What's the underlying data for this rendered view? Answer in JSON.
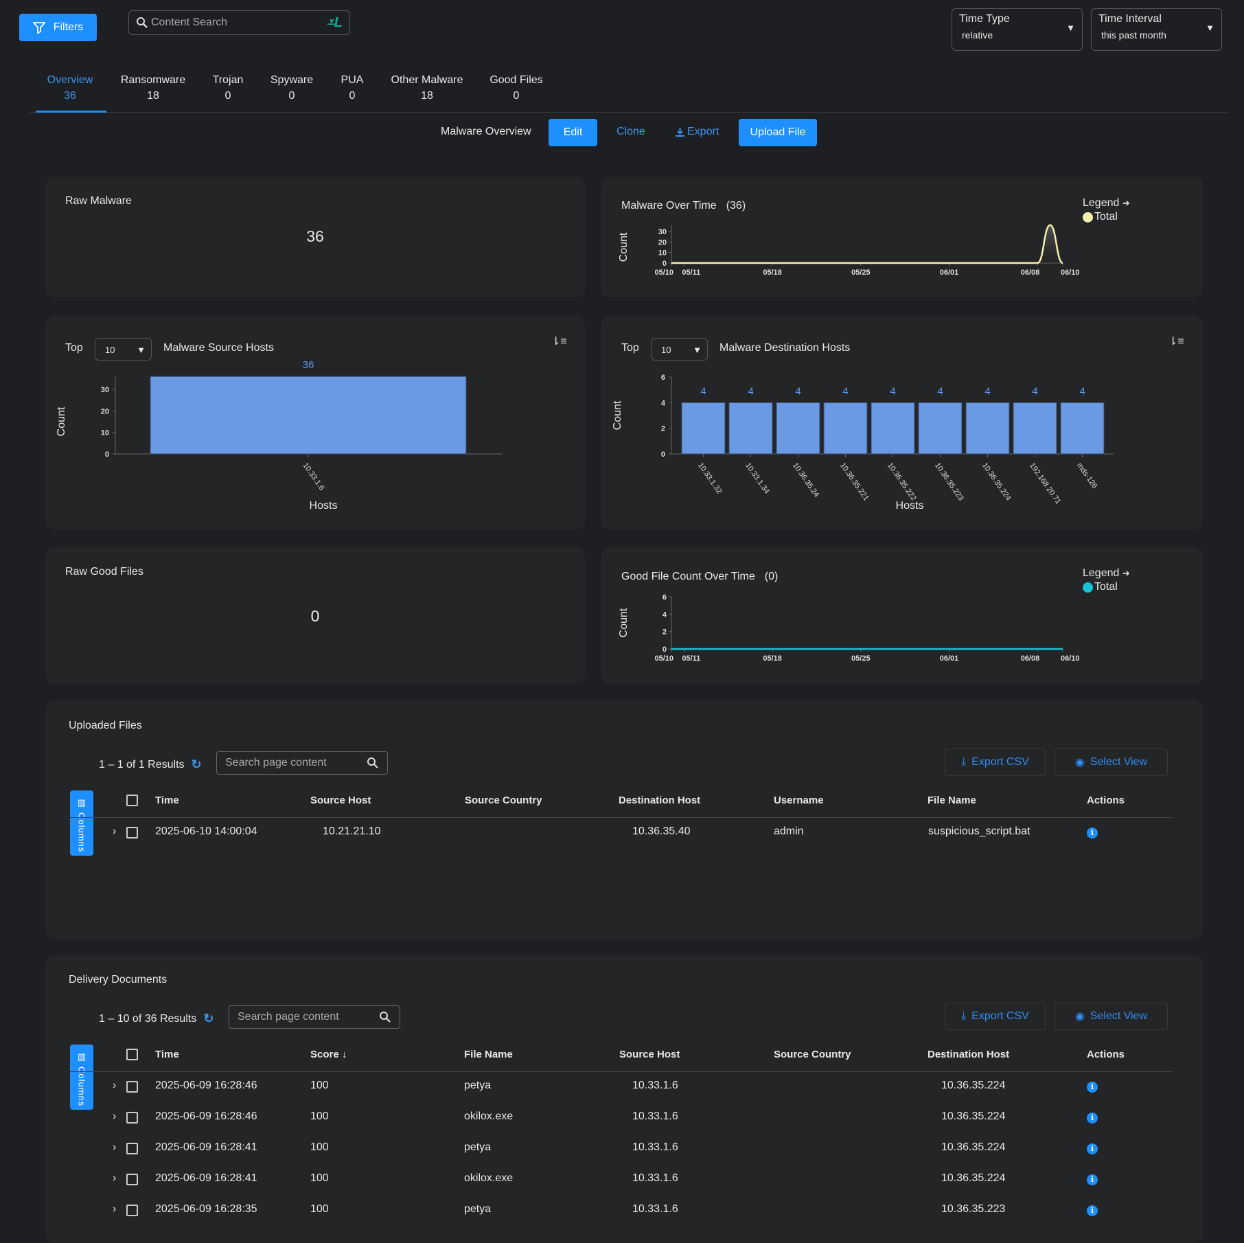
{
  "header": {
    "filters_label": "Filters",
    "search_placeholder": "Content Search",
    "time_type": {
      "label": "Time Type",
      "value": "relative"
    },
    "time_interval": {
      "label": "Time Interval",
      "value": "this past month"
    }
  },
  "tabs": [
    {
      "label": "Overview",
      "count": "36",
      "active": true
    },
    {
      "label": "Ransomware",
      "count": "18"
    },
    {
      "label": "Trojan",
      "count": "0"
    },
    {
      "label": "Spyware",
      "count": "0"
    },
    {
      "label": "PUA",
      "count": "0"
    },
    {
      "label": "Other Malware",
      "count": "18"
    },
    {
      "label": "Good Files",
      "count": "0"
    }
  ],
  "toolbar": {
    "view_name": "Malware Overview",
    "edit": "Edit",
    "clone": "Clone",
    "export": "Export",
    "upload": "Upload File"
  },
  "colors": {
    "accent": "#1e8fff",
    "bar": "#6a9ae3",
    "malware_line": "#f5f0b0",
    "goodfile_line": "#19c3d8"
  },
  "raw_malware": {
    "title": "Raw Malware",
    "value": "36"
  },
  "raw_good_files": {
    "title": "Raw Good Files",
    "value": "0"
  },
  "malware_over_time": {
    "title": "Malware Over Time",
    "count": "(36)",
    "legend_label": "Legend",
    "legend_item": "Total"
  },
  "good_file_over_time": {
    "title": "Good File Count Over Time",
    "count": "(0)",
    "legend_label": "Legend",
    "legend_item": "Total"
  },
  "source_hosts": {
    "top_label": "Top",
    "top_value": "10",
    "title": "Malware Source Hosts"
  },
  "dest_hosts": {
    "top_label": "Top",
    "top_value": "10",
    "title": "Malware Destination Hosts"
  },
  "chart_data": [
    {
      "type": "area",
      "title": "Malware Over Time",
      "ylabel": "Count",
      "x": [
        "05/10",
        "05/11",
        "05/12",
        "05/13",
        "05/14",
        "05/15",
        "05/16",
        "05/17",
        "05/18",
        "05/19",
        "05/20",
        "05/21",
        "05/22",
        "05/23",
        "05/24",
        "05/25",
        "05/26",
        "05/27",
        "05/28",
        "05/29",
        "05/30",
        "05/31",
        "06/01",
        "06/02",
        "06/03",
        "06/04",
        "06/05",
        "06/06",
        "06/07",
        "06/08",
        "06/09",
        "06/10"
      ],
      "values": [
        0,
        0,
        0,
        0,
        0,
        0,
        0,
        0,
        0,
        0,
        0,
        0,
        0,
        0,
        0,
        0,
        0,
        0,
        0,
        0,
        0,
        0,
        0,
        0,
        0,
        0,
        0,
        0,
        0,
        0,
        36,
        0
      ],
      "xticks": [
        "05/10",
        "05/11",
        "05/18",
        "05/25",
        "06/01",
        "06/08",
        "06/10"
      ],
      "yticks": [
        0,
        10,
        20,
        30
      ],
      "ylim": [
        0,
        36
      ],
      "series": [
        {
          "name": "Total"
        }
      ],
      "legend": "top-right"
    },
    {
      "type": "bar",
      "title": "Malware Source Hosts",
      "xlabel": "Hosts",
      "ylabel": "Count",
      "categories": [
        "10.33.1.6"
      ],
      "values": [
        36
      ],
      "yticks": [
        0,
        10,
        20,
        30
      ],
      "ylim": [
        0,
        36
      ]
    },
    {
      "type": "bar",
      "title": "Malware Destination Hosts",
      "xlabel": "Hosts",
      "ylabel": "Count",
      "categories": [
        "10.33.1.32",
        "10.33.1.34",
        "10.36.35.24",
        "10.36.35.221",
        "10.36.35.222",
        "10.36.35.223",
        "10.36.35.224",
        "192.168.20.71",
        "mds-126"
      ],
      "values": [
        4,
        4,
        4,
        4,
        4,
        4,
        4,
        4,
        4
      ],
      "yticks": [
        0,
        2,
        4,
        6
      ],
      "ylim": [
        0,
        6
      ]
    },
    {
      "type": "line",
      "title": "Good File Count Over Time",
      "ylabel": "Count",
      "x": [
        "05/10",
        "06/10"
      ],
      "values": [
        0,
        0
      ],
      "xticks": [
        "05/10",
        "05/11",
        "05/18",
        "05/25",
        "06/01",
        "06/08",
        "06/10"
      ],
      "yticks": [
        0,
        2,
        4,
        6
      ],
      "ylim": [
        0,
        6
      ],
      "series": [
        {
          "name": "Total"
        }
      ],
      "legend": "top-right"
    }
  ],
  "uploaded_files": {
    "title": "Uploaded Files",
    "results": "1 – 1 of 1 Results",
    "search_placeholder": "Search page content",
    "export_csv": "Export CSV",
    "select_view": "Select View",
    "columns_label": "Columns",
    "headers": [
      "Time",
      "Source Host",
      "Source Country",
      "Destination Host",
      "Username",
      "File Name",
      "Actions"
    ],
    "rows": [
      [
        "2025-06-10 14:00:04",
        "10.21.21.10",
        "",
        "10.36.35.40",
        "admin",
        "suspicious_script.bat"
      ]
    ]
  },
  "delivery_documents": {
    "title": "Delivery Documents",
    "results": "1 – 10 of 36 Results",
    "search_placeholder": "Search page content",
    "export_csv": "Export CSV",
    "select_view": "Select View",
    "columns_label": "Columns",
    "headers": [
      "Time",
      "Score",
      "File Name",
      "Source Host",
      "Source Country",
      "Destination Host",
      "Actions"
    ],
    "rows": [
      [
        "2025-06-09 16:28:46",
        "100",
        "petya",
        "10.33.1.6",
        "",
        "10.36.35.224"
      ],
      [
        "2025-06-09 16:28:46",
        "100",
        "okilox.exe",
        "10.33.1.6",
        "",
        "10.36.35.224"
      ],
      [
        "2025-06-09 16:28:41",
        "100",
        "petya",
        "10.33.1.6",
        "",
        "10.36.35.224"
      ],
      [
        "2025-06-09 16:28:41",
        "100",
        "okilox.exe",
        "10.33.1.6",
        "",
        "10.36.35.224"
      ],
      [
        "2025-06-09 16:28:35",
        "100",
        "petya",
        "10.33.1.6",
        "",
        "10.36.35.223"
      ]
    ]
  }
}
